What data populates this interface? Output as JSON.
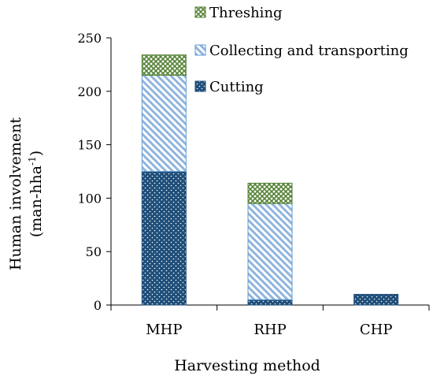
{
  "chart_data": {
    "type": "bar",
    "stacked": true,
    "categories": [
      "MHP",
      "RHP",
      "CHP"
    ],
    "series": [
      {
        "name": "Cutting",
        "values": [
          125,
          5,
          10
        ],
        "color": "#1f4e79",
        "pattern": "dots"
      },
      {
        "name": "Collecting and transporting",
        "values": [
          90,
          90,
          0
        ],
        "color": "#5b9bd5",
        "pattern": "diagonal-stripes"
      },
      {
        "name": "Threshing",
        "values": [
          19,
          19,
          0
        ],
        "color": "#548235",
        "pattern": "crosshatch"
      }
    ],
    "xlabel": "Harvesting method",
    "ylabel_line1": "Human involvement",
    "ylabel_line2": "(man-hha",
    "ylabel_sup": "-1",
    "ylabel_close": ")",
    "ylim": [
      0,
      250
    ],
    "yticks": [
      0,
      50,
      100,
      150,
      200,
      250
    ],
    "grid": false,
    "legend_position": "top-right"
  }
}
